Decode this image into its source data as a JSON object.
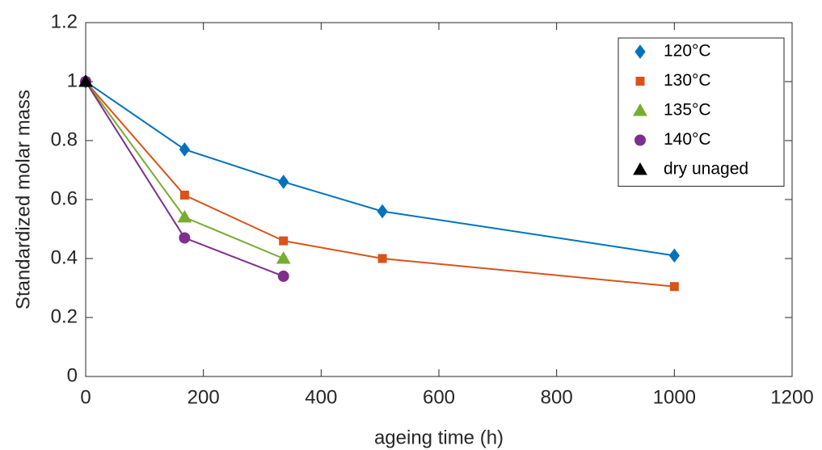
{
  "chart_data": {
    "type": "line",
    "xlabel": "ageing time (h)",
    "ylabel": "Standardized molar mass",
    "xlim": [
      0,
      1200
    ],
    "xticks": [
      0,
      200,
      400,
      600,
      800,
      1000,
      1200
    ],
    "ylim": [
      0,
      1.2
    ],
    "yticks": [
      0,
      0.2,
      0.4,
      0.6,
      0.8,
      1,
      1.2
    ],
    "legend": "upper right",
    "series": [
      {
        "name": "120°C",
        "color": "#0072bd",
        "marker": "diamond",
        "x": [
          0,
          168,
          336,
          504,
          1000
        ],
        "values": [
          1,
          0.77,
          0.66,
          0.56,
          0.41
        ]
      },
      {
        "name": "130°C",
        "color": "#d95319",
        "marker": "square",
        "x": [
          0,
          168,
          336,
          504,
          1000
        ],
        "values": [
          1,
          0.615,
          0.46,
          0.4,
          0.305
        ]
      },
      {
        "name": "135°C",
        "color": "#77ac30",
        "marker": "triangle",
        "x": [
          0,
          168,
          336
        ],
        "values": [
          1,
          0.54,
          0.4
        ]
      },
      {
        "name": "140°C",
        "color": "#7e2f8e",
        "marker": "circle",
        "x": [
          0,
          168,
          336
        ],
        "values": [
          1,
          0.47,
          0.34
        ]
      },
      {
        "name": "dry unaged",
        "color": "#000000",
        "marker": "triangle",
        "x": [
          0
        ],
        "values": [
          1
        ]
      }
    ]
  }
}
